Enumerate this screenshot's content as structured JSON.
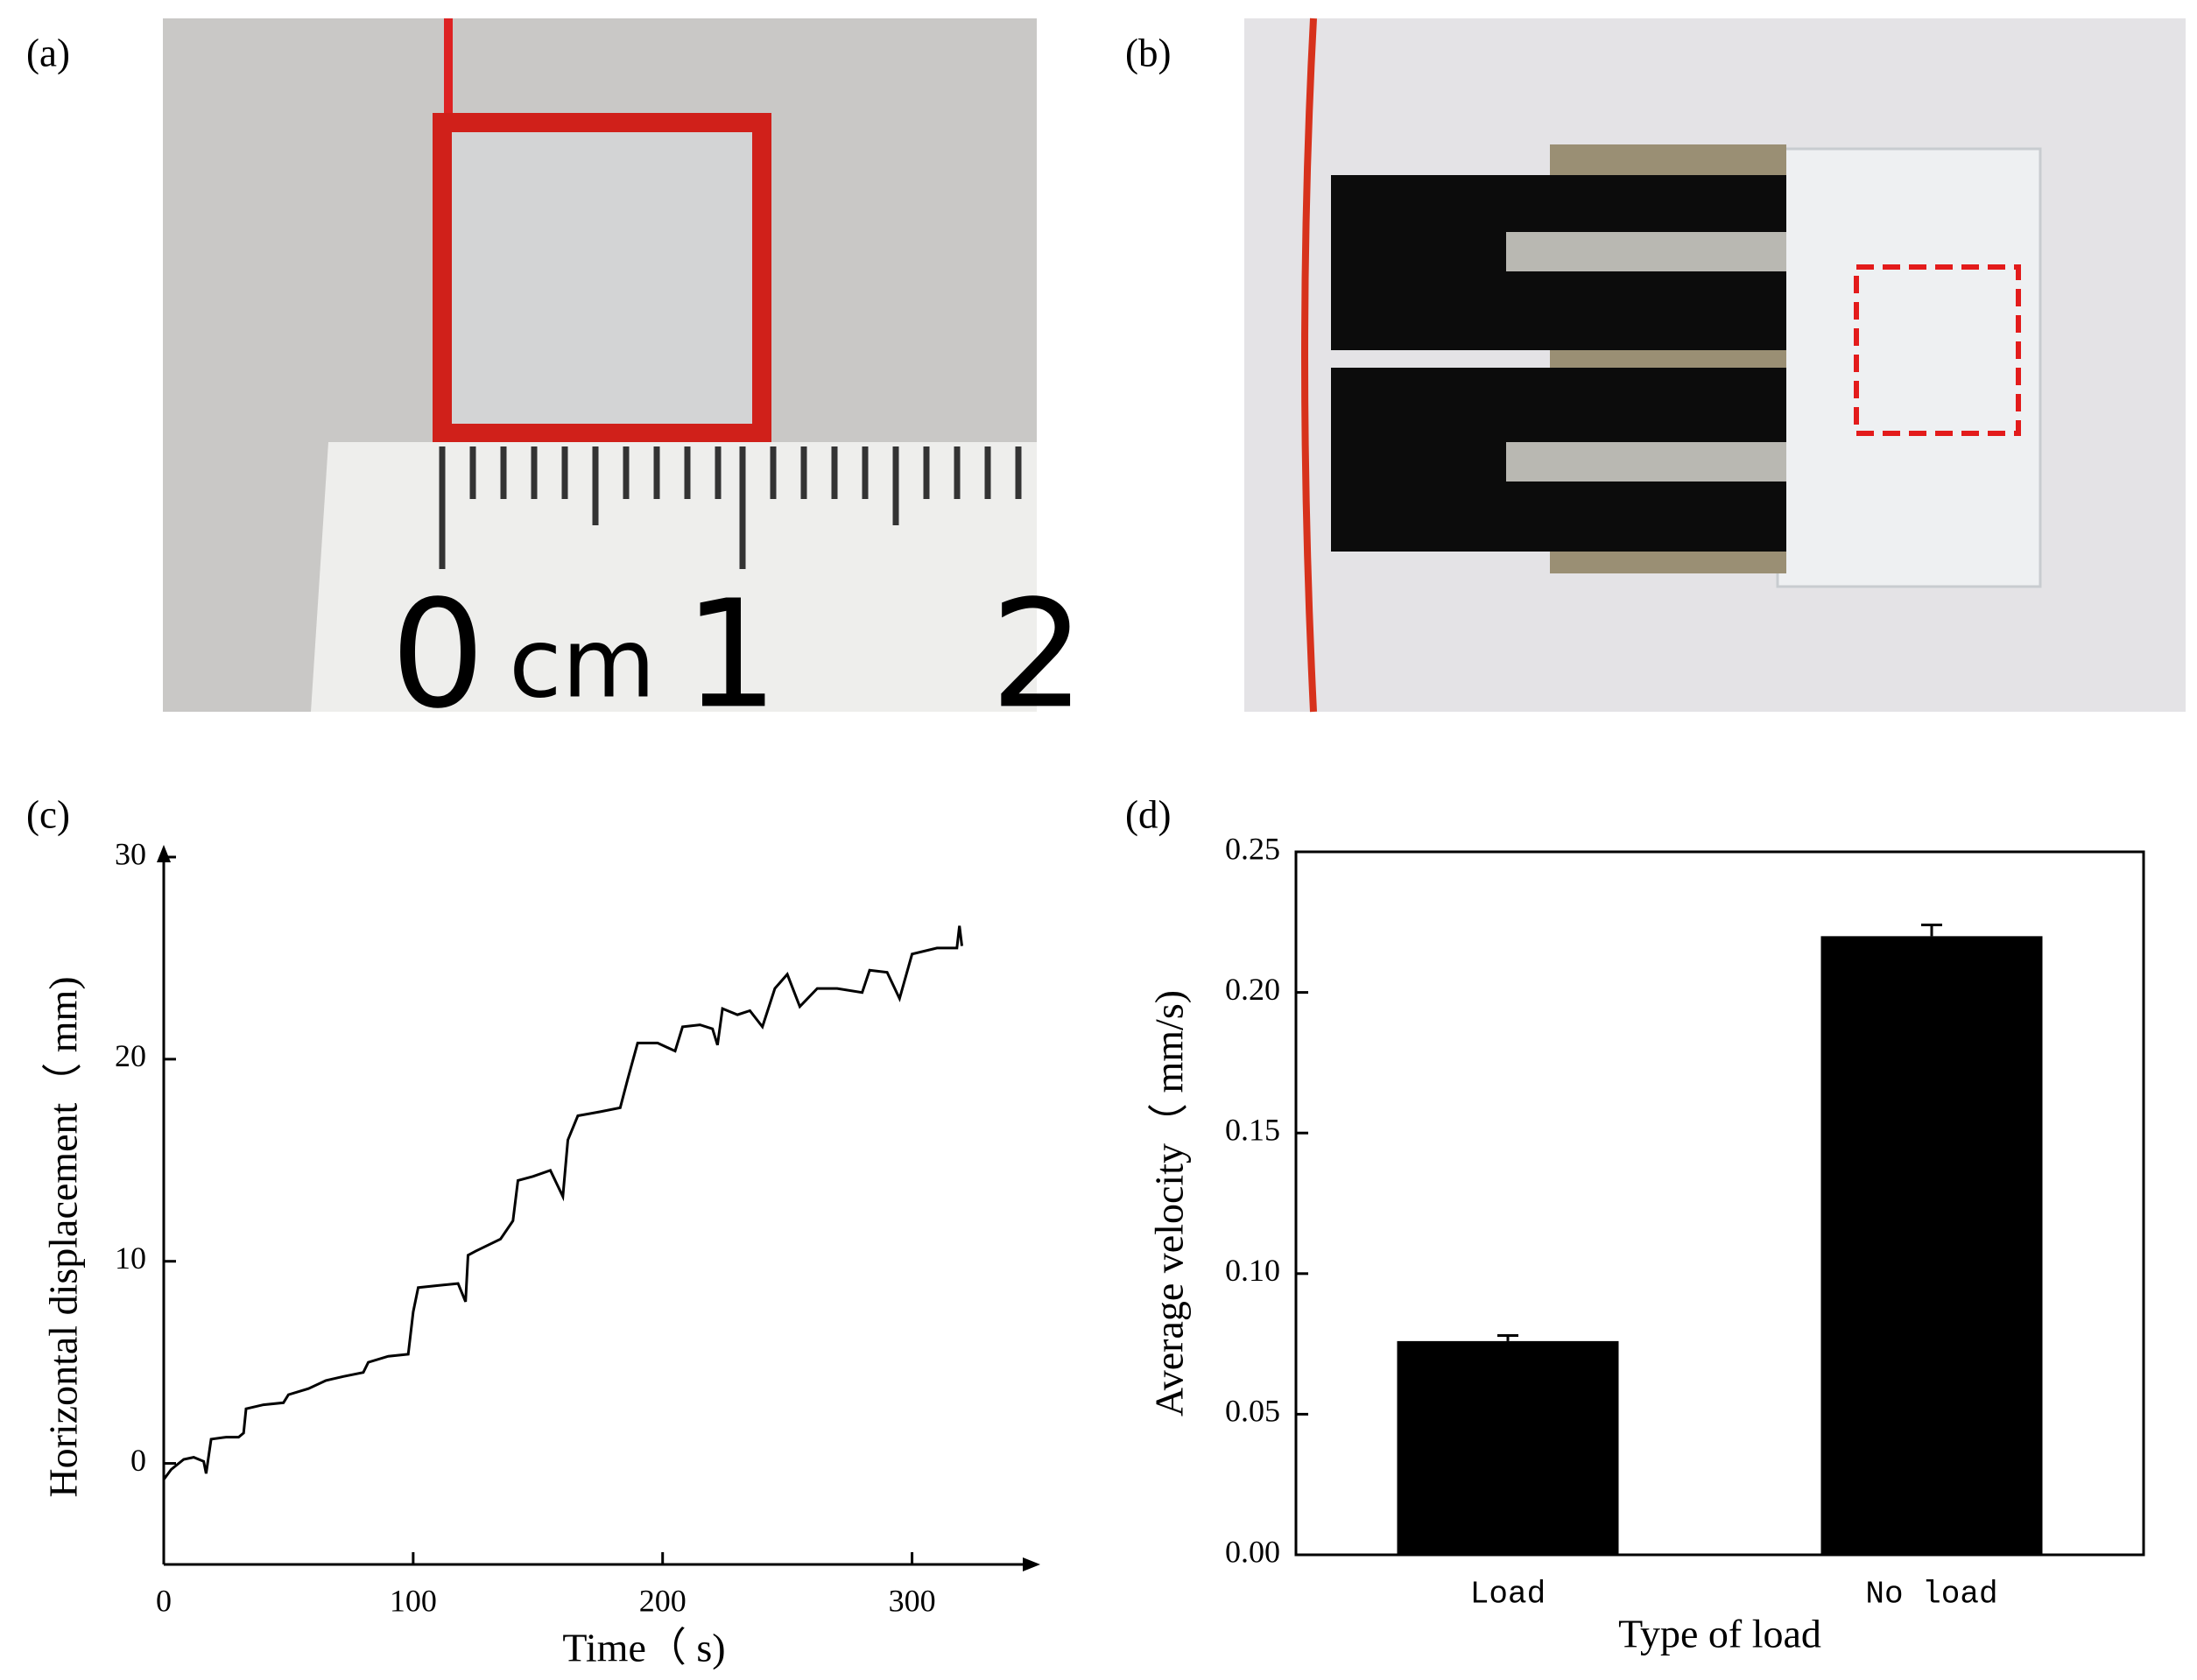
{
  "panels": {
    "a": {
      "panel_label": "(a)",
      "ruler_labels": [
        "0",
        "cm",
        "1",
        "2"
      ]
    },
    "b": {
      "panel_label": "(b)"
    }
  },
  "chart_data": [
    {
      "type": "line",
      "panel_label": "(c)",
      "xlabel": "Time（ s)",
      "ylabel": "Horizontal displacement（ mm)",
      "color": "#000000",
      "x": [
        0,
        3,
        8,
        12,
        16,
        17,
        19,
        25,
        30,
        32,
        33,
        40,
        48,
        50,
        58,
        65,
        72,
        80,
        82,
        90,
        98,
        100,
        102,
        110,
        118,
        121,
        122,
        125,
        135,
        140,
        142,
        148,
        155,
        160,
        162,
        166,
        175,
        183,
        186,
        190,
        198,
        205,
        208,
        215,
        220,
        222,
        224,
        230,
        235,
        240,
        245,
        250,
        255,
        262,
        270,
        280,
        283,
        290,
        295,
        300,
        310,
        318,
        319,
        320
      ],
      "values": [
        -0.8,
        -0.3,
        0.2,
        0.3,
        0.1,
        -0.5,
        1.2,
        1.3,
        1.3,
        1.5,
        2.7,
        2.9,
        3.0,
        3.4,
        3.7,
        4.1,
        4.3,
        4.5,
        5.0,
        5.3,
        5.4,
        7.5,
        8.7,
        8.8,
        8.9,
        8.0,
        10.3,
        10.5,
        11.1,
        12.0,
        14.0,
        14.2,
        14.5,
        13.2,
        16.0,
        17.2,
        17.4,
        17.6,
        19.0,
        20.8,
        20.8,
        20.4,
        21.6,
        21.7,
        21.5,
        20.7,
        22.5,
        22.2,
        22.4,
        21.6,
        23.5,
        24.2,
        22.6,
        23.5,
        23.5,
        23.3,
        24.4,
        24.3,
        23.0,
        25.2,
        25.5,
        25.5,
        26.6,
        25.6
      ],
      "xlim": [
        0,
        350
      ],
      "ylim": [
        -5,
        30
      ],
      "xticks": [
        0,
        100,
        200,
        300
      ],
      "yticks": [
        0,
        10,
        20,
        30
      ]
    },
    {
      "type": "bar",
      "panel_label": "(d)",
      "xlabel": "Type of load",
      "ylabel": "Average velocity（ mm/s)",
      "color": "#000000",
      "categories": [
        "Load",
        "No load"
      ],
      "values": [
        0.076,
        0.22
      ],
      "errors": [
        0.002,
        0.004
      ],
      "ylim": [
        0,
        0.25
      ],
      "yticks": [
        {
          "value": 0,
          "label": "0.00"
        },
        {
          "value": 0.05,
          "label": "0.05"
        },
        {
          "value": 0.1,
          "label": "0.10"
        },
        0.15,
        {
          "value": 0.2,
          "label": "0.20"
        },
        0.25
      ]
    }
  ]
}
